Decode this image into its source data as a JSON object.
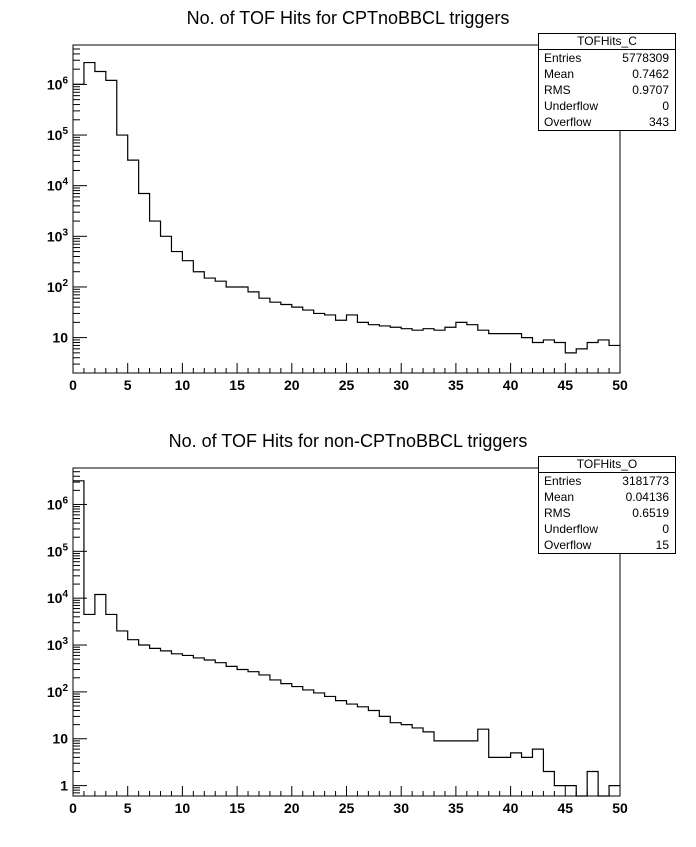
{
  "chart_data": [
    {
      "type": "histogram",
      "title": "No. of TOF Hits for CPTnoBBCL triggers",
      "xlim": [
        0,
        50
      ],
      "ylim": [
        2,
        6000000
      ],
      "yscale": "log",
      "bin_width": 1,
      "x_ticks": [
        "0",
        "5",
        "10",
        "15",
        "20",
        "25",
        "30",
        "35",
        "40",
        "45",
        "50"
      ],
      "y_ticks": [
        {
          "value": 10,
          "label": "10"
        },
        {
          "value": 100,
          "label": "10^2"
        },
        {
          "value": 1000,
          "label": "10^3"
        },
        {
          "value": 10000,
          "label": "10^4"
        },
        {
          "value": 100000,
          "label": "10^5"
        },
        {
          "value": 1000000,
          "label": "10^6"
        }
      ],
      "bin_contents": [
        1000000,
        2700000,
        1800000,
        1200000,
        100000,
        32000,
        7000,
        2000,
        1000,
        500,
        330,
        200,
        150,
        130,
        100,
        100,
        80,
        60,
        50,
        45,
        40,
        35,
        30,
        28,
        22,
        28,
        20,
        18,
        17,
        16,
        15,
        14,
        15,
        14,
        16,
        20,
        18,
        14,
        12,
        12,
        12,
        10,
        8,
        9,
        8,
        5,
        6,
        8,
        9,
        7
      ],
      "stats": {
        "name": "TOFHits_C",
        "rows": [
          {
            "label": "Entries",
            "value": "5778309"
          },
          {
            "label": "Mean",
            "value": "0.7462"
          },
          {
            "label": "RMS",
            "value": "0.9707"
          },
          {
            "label": "Underflow",
            "value": "0"
          },
          {
            "label": "Overflow",
            "value": "343"
          }
        ]
      }
    },
    {
      "type": "histogram",
      "title": "No. of TOF Hits for non-CPTnoBBCL triggers",
      "xlim": [
        0,
        50
      ],
      "ylim": [
        0.6,
        6000000
      ],
      "yscale": "log",
      "bin_width": 1,
      "x_ticks": [
        "0",
        "5",
        "10",
        "15",
        "20",
        "25",
        "30",
        "35",
        "40",
        "45",
        "50"
      ],
      "y_ticks": [
        {
          "value": 1,
          "label": "1"
        },
        {
          "value": 10,
          "label": "10"
        },
        {
          "value": 100,
          "label": "10^2"
        },
        {
          "value": 1000,
          "label": "10^3"
        },
        {
          "value": 10000,
          "label": "10^4"
        },
        {
          "value": 100000,
          "label": "10^5"
        },
        {
          "value": 1000000,
          "label": "10^6"
        }
      ],
      "bin_contents": [
        3200000,
        4500,
        12000,
        4500,
        2000,
        1300,
        1000,
        850,
        750,
        650,
        600,
        530,
        480,
        420,
        350,
        300,
        270,
        230,
        180,
        150,
        130,
        110,
        95,
        80,
        65,
        55,
        48,
        40,
        30,
        22,
        20,
        17,
        14,
        9,
        9,
        9,
        9,
        16,
        4,
        4,
        5,
        4,
        6,
        2,
        1,
        1,
        0,
        2,
        0,
        1
      ],
      "stats": {
        "name": "TOFHits_O",
        "rows": [
          {
            "label": "Entries",
            "value": "3181773"
          },
          {
            "label": "Mean",
            "value": "0.04136"
          },
          {
            "label": "RMS",
            "value": "0.6519"
          },
          {
            "label": "Underflow",
            "value": "0"
          },
          {
            "label": "Overflow",
            "value": "15"
          }
        ]
      }
    }
  ]
}
